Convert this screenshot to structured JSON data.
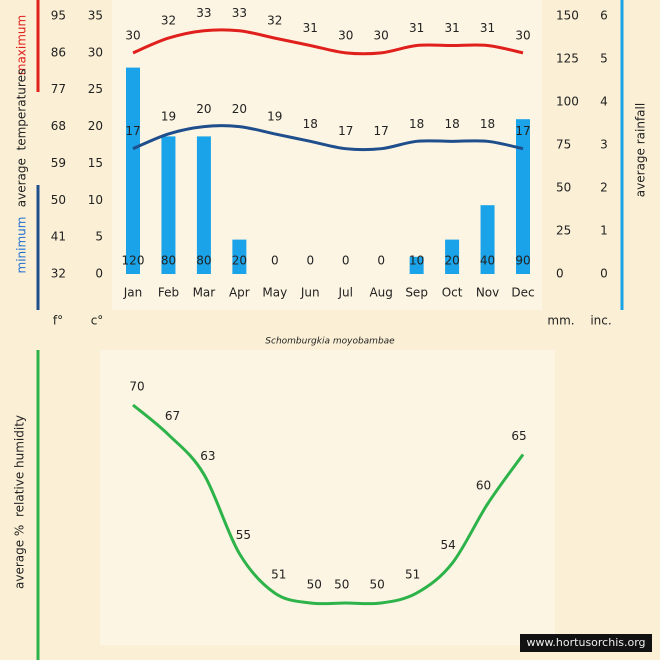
{
  "chart_data": [
    {
      "type": "climate",
      "categories": [
        "Jan",
        "Feb",
        "Mar",
        "Apr",
        "May",
        "Jun",
        "Jul",
        "Aug",
        "Sep",
        "Oct",
        "Nov",
        "Dec"
      ],
      "series": [
        {
          "color": "#1aa3e8",
          "axis": "y2",
          "values": [
            120,
            80,
            80,
            20,
            0,
            0,
            0,
            0,
            10,
            20,
            40,
            90
          ]
        },
        {
          "color": "#e0201c",
          "values": [
            30,
            32,
            33,
            33,
            32,
            31,
            30,
            30,
            31,
            31,
            31,
            30
          ]
        },
        {
          "color": "#1f4e8c",
          "values": [
            17,
            19,
            20,
            20,
            19,
            18,
            17,
            17,
            18,
            18,
            18,
            17
          ]
        }
      ],
      "ylim": [
        0,
        35
      ],
      "yticks": [
        0,
        5,
        10,
        15,
        20,
        25,
        30,
        35
      ],
      "fticks": [
        {
          "value": 0,
          "label": "32"
        },
        {
          "value": 5,
          "label": "41"
        },
        {
          "value": 10,
          "label": "50"
        },
        {
          "value": 15,
          "label": "59"
        },
        {
          "value": 20,
          "label": "68"
        },
        {
          "value": 25,
          "label": "77"
        },
        {
          "value": 30,
          "label": "86"
        },
        {
          "value": 35,
          "label": "95"
        }
      ],
      "y2lim": [
        0,
        150
      ],
      "y2ticks": [
        0,
        25,
        50,
        75,
        100,
        125,
        150
      ],
      "inticks": [
        {
          "value": 0,
          "label": "0"
        },
        {
          "value": 25,
          "label": "1"
        },
        {
          "value": 50,
          "label": "2"
        },
        {
          "value": 75,
          "label": "3"
        },
        {
          "value": 100,
          "label": "4"
        },
        {
          "value": 125,
          "label": "5"
        },
        {
          "value": 150,
          "label": "6"
        }
      ],
      "ylabel": [
        "maximum",
        "average  temperatures",
        "minimum"
      ],
      "y2label": "average rainfall",
      "units": [
        "f°",
        "c°",
        "mm.",
        "inc."
      ],
      "subtitle": "Schomburgkia moyobambae"
    },
    {
      "type": "line",
      "ylabel": "average %  relative humidity",
      "color": "#2db34a",
      "values": [
        70,
        67,
        63,
        55,
        51,
        50,
        50,
        50,
        51,
        54,
        60,
        65
      ],
      "credit": "www.hortusorchis.org"
    }
  ]
}
